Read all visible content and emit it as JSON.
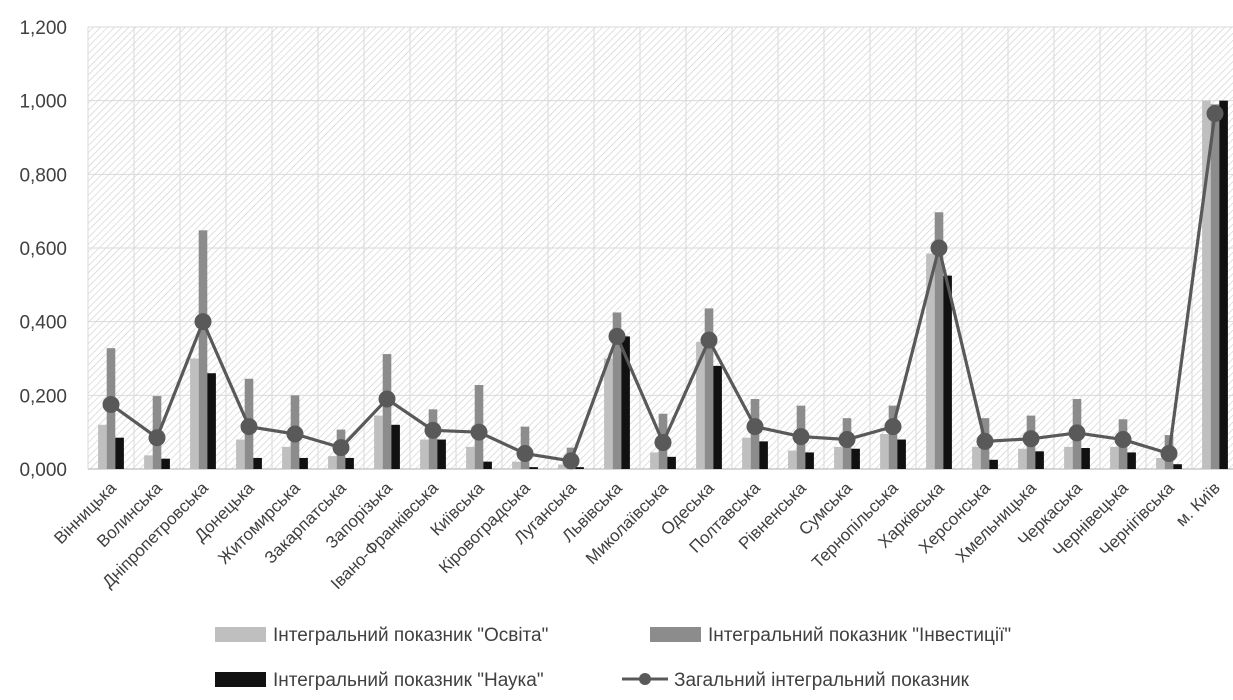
{
  "chart_data": {
    "type": "bar",
    "title": "",
    "xlabel": "",
    "ylabel": "",
    "ylim": [
      0,
      1.2
    ],
    "yticks": [
      "0,000",
      "0,200",
      "0,400",
      "0,600",
      "0,800",
      "1,000",
      "1,200"
    ],
    "grid": true,
    "legend_position": "bottom",
    "categories": [
      "Вінницька",
      "Волинська",
      "Дніпропетровська",
      "Донецька",
      "Житомирська",
      "Закарпатська",
      "Запорізька",
      "Івано-Франківська",
      "Київська",
      "Кіровоградська",
      "Луганська",
      "Львівська",
      "Миколаївська",
      "Одеська",
      "Полтавська",
      "Рівненська",
      "Сумська",
      "Тернопільська",
      "Харківська",
      "Херсонська",
      "Хмельницька",
      "Черкаська",
      "Чернівецька",
      "Чернігівська",
      "м. Київ"
    ],
    "series": [
      {
        "name": "Інтегральний показник \"Освіта\"",
        "kind": "bar",
        "color": "#bfbfbf",
        "values": [
          0.12,
          0.037,
          0.3,
          0.08,
          0.06,
          0.035,
          0.145,
          0.08,
          0.06,
          0.02,
          0.012,
          0.3,
          0.045,
          0.345,
          0.085,
          0.05,
          0.06,
          0.095,
          0.585,
          0.06,
          0.055,
          0.06,
          0.06,
          0.03,
          1.0
        ]
      },
      {
        "name": "Інтегральний показник \"Інвестиції\"",
        "kind": "bar",
        "color": "#8c8c8c",
        "values": [
          0.328,
          0.198,
          0.648,
          0.245,
          0.2,
          0.107,
          0.312,
          0.162,
          0.228,
          0.115,
          0.058,
          0.425,
          0.15,
          0.436,
          0.19,
          0.172,
          0.138,
          0.172,
          0.697,
          0.138,
          0.145,
          0.19,
          0.135,
          0.092,
          0.99
        ]
      },
      {
        "name": "Інтегральний показник \"Наука\"",
        "kind": "bar",
        "color": "#111111",
        "values": [
          0.085,
          0.028,
          0.26,
          0.03,
          0.03,
          0.03,
          0.12,
          0.08,
          0.02,
          0.005,
          0.005,
          0.36,
          0.033,
          0.28,
          0.075,
          0.045,
          0.055,
          0.08,
          0.525,
          0.025,
          0.048,
          0.057,
          0.045,
          0.013,
          1.0
        ]
      },
      {
        "name": "Загальний інтегральний показник",
        "kind": "line",
        "color": "#595959",
        "values": [
          0.175,
          0.085,
          0.4,
          0.115,
          0.095,
          0.058,
          0.19,
          0.105,
          0.1,
          0.042,
          0.022,
          0.36,
          0.072,
          0.35,
          0.115,
          0.088,
          0.08,
          0.115,
          0.6,
          0.075,
          0.082,
          0.098,
          0.08,
          0.042,
          0.965
        ]
      }
    ]
  }
}
